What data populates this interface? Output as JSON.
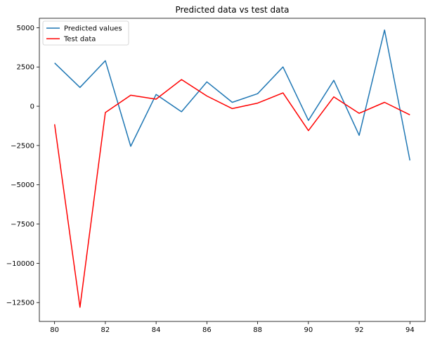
{
  "chart_data": {
    "type": "line",
    "title": "Predicted data vs test data",
    "xlabel": "",
    "ylabel": "",
    "x": [
      80,
      81,
      82,
      83,
      84,
      85,
      86,
      87,
      88,
      89,
      90,
      91,
      92,
      93,
      94
    ],
    "xlim": [
      79.4,
      94.6
    ],
    "ylim": [
      -13700,
      5600
    ],
    "xticks": [
      80,
      82,
      84,
      86,
      88,
      90,
      92,
      94
    ],
    "yticks": [
      5000,
      2500,
      0,
      -2500,
      -5000,
      -7500,
      -10000,
      -12500
    ],
    "ytick_labels": [
      "5000",
      "2500",
      "0",
      "−2500",
      "−5000",
      "−7500",
      "−10000",
      "−12500"
    ],
    "grid": false,
    "legend_position": "upper-left",
    "series": [
      {
        "name": "Predicted values",
        "color": "#1f77b4",
        "values": [
          2750,
          1200,
          2900,
          -2550,
          750,
          -350,
          1550,
          250,
          800,
          2500,
          -900,
          1650,
          -1850,
          4850,
          -3450
        ]
      },
      {
        "name": "Test data",
        "color": "#ff0000",
        "values": [
          -1150,
          -12800,
          -400,
          700,
          450,
          1700,
          650,
          -150,
          200,
          850,
          -1550,
          600,
          -450,
          250,
          -550
        ]
      }
    ]
  }
}
